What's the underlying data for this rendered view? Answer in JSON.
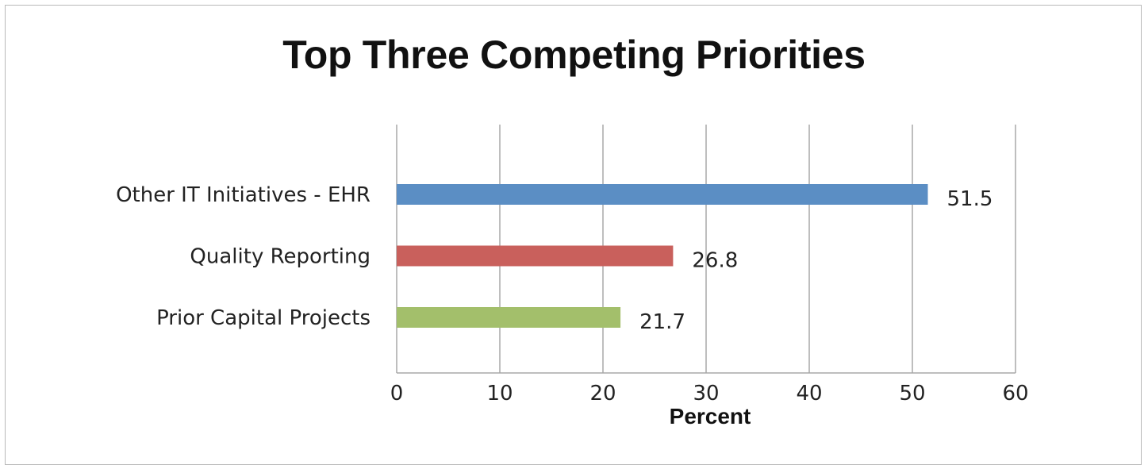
{
  "chart_data": {
    "type": "bar",
    "orientation": "horizontal",
    "title": "Top Three Competing Priorities",
    "xlabel": "Percent",
    "ylabel": "",
    "xlim": [
      0,
      60
    ],
    "x_ticks": [
      0,
      10,
      20,
      30,
      40,
      50,
      60
    ],
    "grid": "vertical",
    "legend": "none",
    "categories": [
      "Other IT Initiatives - EHR",
      "Quality Reporting",
      "Prior Capital Projects"
    ],
    "values": [
      51.5,
      26.8,
      21.7
    ],
    "value_labels": [
      "51.5",
      "26.8",
      "21.7"
    ],
    "colors": [
      "#5b8ec4",
      "#c9605c",
      "#a3bf6b"
    ],
    "gridline_color": "#a8a8a8"
  }
}
